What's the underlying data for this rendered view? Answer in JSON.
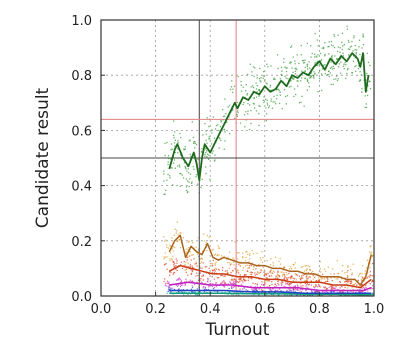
{
  "chart_data": {
    "type": "scatter",
    "title": "",
    "xlabel": "Turnout",
    "ylabel": "Candidate result",
    "xlim": [
      0.0,
      1.0
    ],
    "ylim": [
      0.0,
      1.0
    ],
    "x_ticks": [
      "0.0",
      "0.2",
      "0.4",
      "0.6",
      "0.8",
      "1.0"
    ],
    "y_ticks": [
      "0.0",
      "0.2",
      "0.4",
      "0.6",
      "0.8",
      "1.0"
    ],
    "grid": true,
    "grid_style": "dotted",
    "legend": "none",
    "reference_lines": [
      {
        "orientation": "vertical",
        "value": 0.36,
        "color": "#444444"
      },
      {
        "orientation": "vertical",
        "value": 0.495,
        "color": "#e08080"
      },
      {
        "orientation": "horizontal",
        "value": 0.5,
        "color": "#444444"
      },
      {
        "orientation": "horizontal",
        "value": 0.64,
        "color": "#e08080"
      }
    ],
    "series": [
      {
        "color": "#1e6b1e",
        "point_color": "#3a9a3a",
        "x": [
          0.25,
          0.27,
          0.28,
          0.3,
          0.32,
          0.34,
          0.35,
          0.36,
          0.37,
          0.38,
          0.4,
          0.42,
          0.44,
          0.45,
          0.47,
          0.49,
          0.5,
          0.52,
          0.54,
          0.56,
          0.58,
          0.6,
          0.62,
          0.64,
          0.66,
          0.68,
          0.7,
          0.72,
          0.74,
          0.76,
          0.78,
          0.8,
          0.82,
          0.84,
          0.86,
          0.88,
          0.9,
          0.92,
          0.94,
          0.95,
          0.96,
          0.97,
          0.98
        ],
        "values": [
          0.46,
          0.53,
          0.55,
          0.5,
          0.47,
          0.52,
          0.48,
          0.42,
          0.5,
          0.55,
          0.52,
          0.56,
          0.6,
          0.62,
          0.66,
          0.7,
          0.68,
          0.72,
          0.71,
          0.74,
          0.73,
          0.76,
          0.74,
          0.75,
          0.78,
          0.76,
          0.8,
          0.79,
          0.81,
          0.8,
          0.83,
          0.85,
          0.82,
          0.86,
          0.84,
          0.87,
          0.85,
          0.88,
          0.86,
          0.83,
          0.88,
          0.74,
          0.8
        ]
      },
      {
        "color": "#a8641e",
        "point_color": "#e0a030",
        "x": [
          0.25,
          0.27,
          0.29,
          0.31,
          0.33,
          0.35,
          0.37,
          0.39,
          0.41,
          0.43,
          0.45,
          0.48,
          0.51,
          0.54,
          0.57,
          0.6,
          0.63,
          0.66,
          0.69,
          0.72,
          0.75,
          0.78,
          0.81,
          0.84,
          0.87,
          0.9,
          0.93,
          0.95,
          0.97,
          0.99
        ],
        "values": [
          0.16,
          0.2,
          0.22,
          0.14,
          0.18,
          0.16,
          0.15,
          0.19,
          0.14,
          0.13,
          0.14,
          0.13,
          0.12,
          0.12,
          0.11,
          0.11,
          0.1,
          0.1,
          0.09,
          0.09,
          0.08,
          0.08,
          0.07,
          0.07,
          0.07,
          0.06,
          0.06,
          0.04,
          0.07,
          0.15
        ]
      },
      {
        "color": "#c83c14",
        "point_color": "#e04828",
        "x": [
          0.25,
          0.29,
          0.33,
          0.37,
          0.41,
          0.45,
          0.5,
          0.55,
          0.6,
          0.65,
          0.7,
          0.75,
          0.8,
          0.85,
          0.9,
          0.95,
          0.99
        ],
        "values": [
          0.09,
          0.11,
          0.1,
          0.09,
          0.08,
          0.08,
          0.07,
          0.07,
          0.06,
          0.06,
          0.05,
          0.05,
          0.05,
          0.04,
          0.04,
          0.03,
          0.06
        ]
      },
      {
        "color": "#c020c0",
        "point_color": "#d040d0",
        "x": [
          0.25,
          0.32,
          0.4,
          0.48,
          0.56,
          0.64,
          0.72,
          0.8,
          0.88,
          0.96,
          0.99
        ],
        "values": [
          0.04,
          0.05,
          0.04,
          0.04,
          0.03,
          0.03,
          0.03,
          0.02,
          0.02,
          0.02,
          0.03
        ]
      },
      {
        "color": "#2040c0",
        "point_color": "#3050d0",
        "x": [
          0.25,
          0.35,
          0.45,
          0.55,
          0.65,
          0.75,
          0.85,
          0.95,
          0.99
        ],
        "values": [
          0.02,
          0.02,
          0.02,
          0.015,
          0.015,
          0.01,
          0.01,
          0.01,
          0.01
        ]
      },
      {
        "color": "#10a080",
        "point_color": "#20b890",
        "x": [
          0.25,
          0.35,
          0.45,
          0.55,
          0.65,
          0.75,
          0.85,
          0.95,
          0.99
        ],
        "values": [
          0.01,
          0.01,
          0.01,
          0.008,
          0.008,
          0.006,
          0.006,
          0.005,
          0.005
        ]
      }
    ]
  }
}
